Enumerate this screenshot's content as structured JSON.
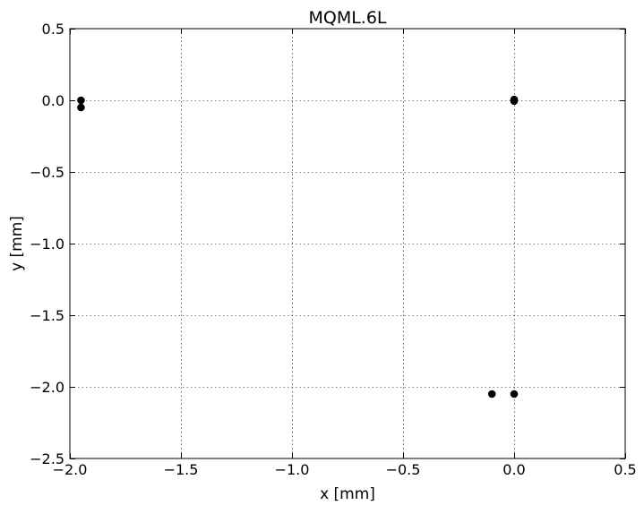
{
  "chart_data": {
    "type": "scatter",
    "title": "MQML.6L",
    "xlabel": "x [mm]",
    "ylabel": "y [mm]",
    "xlim": [
      -2.0,
      0.5
    ],
    "ylim": [
      -2.5,
      0.5
    ],
    "xticks": [
      -2.0,
      -1.5,
      -1.0,
      -0.5,
      0.0,
      0.5
    ],
    "yticks": [
      -2.5,
      -2.0,
      -1.5,
      -1.0,
      -0.5,
      0.0,
      0.5
    ],
    "xtick_labels": [
      "−2.0",
      "−1.5",
      "−1.0",
      "−0.5",
      "0.0",
      "0.5"
    ],
    "ytick_labels": [
      "−2.5",
      "−2.0",
      "−1.5",
      "−1.0",
      "−0.5",
      "0.0",
      "0.5"
    ],
    "grid": true,
    "marker_color": "#000000",
    "points": [
      {
        "x": -1.95,
        "y": 0.0
      },
      {
        "x": -1.95,
        "y": -0.05
      },
      {
        "x": 0.0,
        "y": 0.0
      },
      {
        "x": 0.0,
        "y": 0.005
      },
      {
        "x": 0.0,
        "y": -0.005
      },
      {
        "x": -0.1,
        "y": -2.05
      },
      {
        "x": 0.0,
        "y": -2.05
      }
    ]
  }
}
